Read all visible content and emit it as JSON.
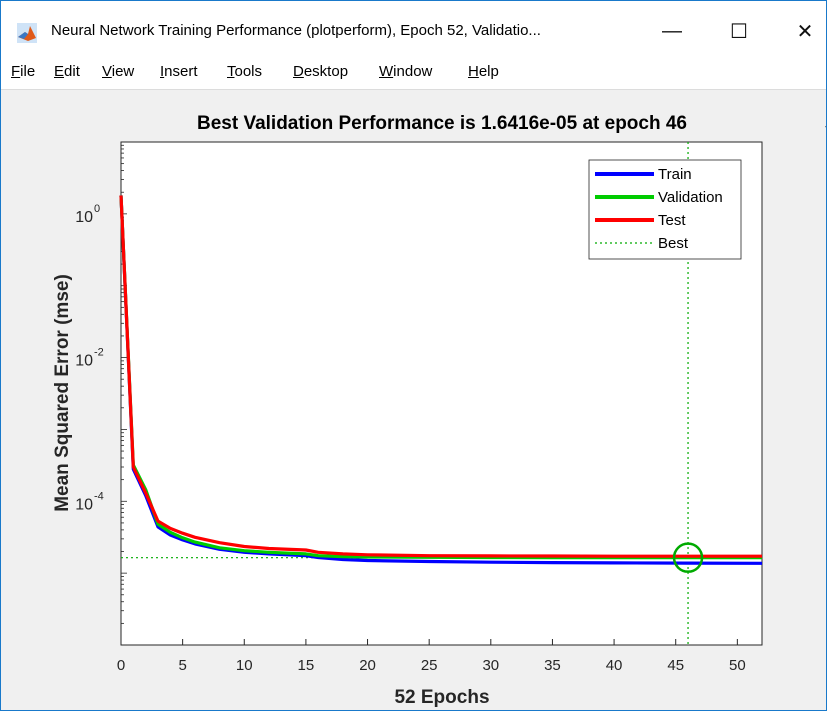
{
  "window": {
    "title": "Neural Network Training Performance (plotperform), Epoch 52, Validatio...",
    "minimize_glyph": "—",
    "maximize_glyph": "☐",
    "close_glyph": "✕",
    "app_icon": "matlab-icon"
  },
  "menubar": {
    "items": [
      {
        "label": "File"
      },
      {
        "label": "Edit"
      },
      {
        "label": "View"
      },
      {
        "label": "Insert"
      },
      {
        "label": "Tools"
      },
      {
        "label": "Desktop"
      },
      {
        "label": "Window"
      },
      {
        "label": "Help"
      }
    ],
    "overflow_glyph": "»"
  },
  "chart_data": {
    "type": "line",
    "title": "Best Validation Performance is 1.6416e-05 at epoch 46",
    "xlabel": "52 Epochs",
    "ylabel": "Mean Squared Error  (mse)",
    "xlim": [
      0,
      52
    ],
    "ylim": [
      1e-06,
      10
    ],
    "yscale": "log",
    "xticks": [
      "0",
      "5",
      "10",
      "15",
      "20",
      "25",
      "30",
      "35",
      "40",
      "45",
      "50"
    ],
    "yticks": [
      {
        "base": "10",
        "exp": "-4"
      },
      {
        "base": "10",
        "exp": "-2"
      },
      {
        "base": "10",
        "exp": "0"
      }
    ],
    "grid": false,
    "legend_position": "top-right",
    "best_epoch": 46,
    "best_value": 1.6416e-05,
    "colors": {
      "train": "#0000ff",
      "validation": "#00cc00",
      "test": "#ff0000",
      "best": "#00aa00"
    },
    "series": [
      {
        "name": "Train",
        "x": [
          0,
          1,
          2,
          3,
          4,
          5,
          6,
          8,
          10,
          12,
          15,
          16,
          18,
          20,
          25,
          30,
          35,
          40,
          46,
          52
        ],
        "y": [
          1.8,
          0.00028,
          0.00012,
          4.4e-05,
          3.4e-05,
          2.9e-05,
          2.55e-05,
          2.15e-05,
          1.95e-05,
          1.85e-05,
          1.75e-05,
          1.65e-05,
          1.55e-05,
          1.5e-05,
          1.45e-05,
          1.42e-05,
          1.4e-05,
          1.39e-05,
          1.38e-05,
          1.37e-05
        ]
      },
      {
        "name": "Validation",
        "x": [
          0,
          1,
          2,
          3,
          4,
          5,
          6,
          8,
          10,
          12,
          15,
          16,
          18,
          20,
          25,
          30,
          35,
          40,
          46,
          52
        ],
        "y": [
          1.8,
          0.00032,
          0.000145,
          4.8e-05,
          3.7e-05,
          3.1e-05,
          2.7e-05,
          2.25e-05,
          2.05e-05,
          1.95e-05,
          1.85e-05,
          1.75e-05,
          1.7e-05,
          1.68e-05,
          1.66e-05,
          1.65e-05,
          1.645e-05,
          1.642e-05,
          1.6416e-05,
          1.64e-05
        ]
      },
      {
        "name": "Test",
        "x": [
          0,
          1,
          2,
          3,
          4,
          5,
          6,
          8,
          10,
          12,
          15,
          16,
          18,
          20,
          25,
          30,
          35,
          40,
          46,
          52
        ],
        "y": [
          1.8,
          0.0003,
          0.00013,
          5.3e-05,
          4.2e-05,
          3.6e-05,
          3.15e-05,
          2.65e-05,
          2.35e-05,
          2.2e-05,
          2.1e-05,
          1.95e-05,
          1.85e-05,
          1.8e-05,
          1.75e-05,
          1.74e-05,
          1.73e-05,
          1.72e-05,
          1.72e-05,
          1.72e-05
        ]
      },
      {
        "name": "Best"
      }
    ]
  }
}
